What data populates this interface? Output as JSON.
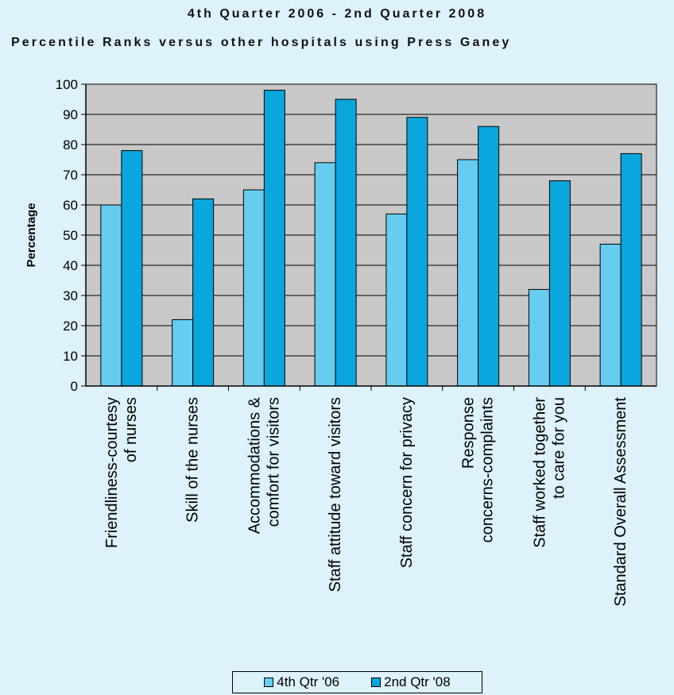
{
  "chart_data": {
    "type": "bar",
    "title": "4th Quarter 2006 - 2nd Quarter 2008",
    "subtitle": "Percentile Ranks versus other hospitals using Press Ganey",
    "ylabel": "Percentage",
    "xlabel": "",
    "ylim": [
      0,
      100
    ],
    "yticks": [
      0,
      10,
      20,
      30,
      40,
      50,
      60,
      70,
      80,
      90,
      100
    ],
    "grid": true,
    "legend_position": "bottom",
    "categories": [
      [
        "Friendliness-courtesy",
        "of nurses"
      ],
      [
        "Skill of the nurses"
      ],
      [
        "Accommodations &",
        "comfort for visitors"
      ],
      [
        "Staff attitude toward visitors"
      ],
      [
        "Staff concern for privacy"
      ],
      [
        "Response",
        "concerns-complaints"
      ],
      [
        "Staff worked together",
        "to care for you"
      ],
      [
        "Standard Overall Assessment"
      ]
    ],
    "series": [
      {
        "name": "4th Qtr '06",
        "color": "#66ccf0",
        "values": [
          60,
          22,
          65,
          74,
          57,
          75,
          32,
          47
        ]
      },
      {
        "name": "2nd Qtr '08",
        "color": "#0aa6de",
        "values": [
          78,
          62,
          98,
          95,
          89,
          86,
          68,
          77
        ]
      }
    ],
    "plot_background": "#c8c8c8"
  }
}
